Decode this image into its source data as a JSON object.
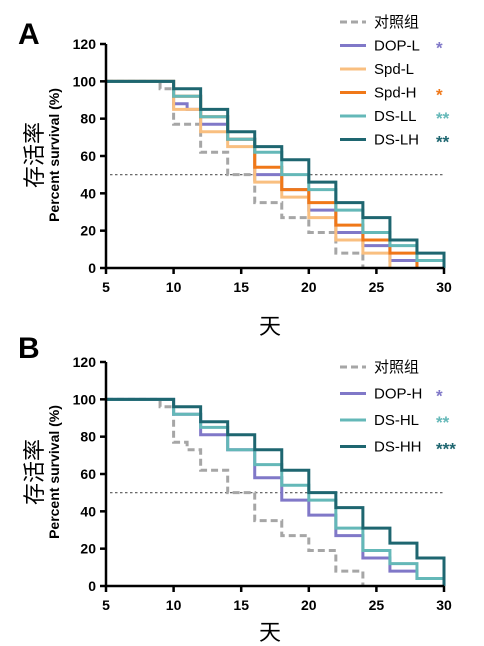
{
  "colors": {
    "control": "#a6a6a6",
    "DOP-L": "#8078c8",
    "Spd-L": "#f9bf80",
    "Spd-H": "#f07818",
    "DS-LL": "#64b8b8",
    "DS-LH": "#1e6670",
    "DOP-H": "#8078c8",
    "DS-HL": "#64b8b8",
    "DS-HH": "#1e6670",
    "reference": "#555555"
  },
  "chart_data": [
    {
      "panel": "A",
      "type": "line",
      "step": true,
      "ylabel_cn": "存活率",
      "ylabel": "Percent survival (%)",
      "xlabel": "天",
      "xlim": [
        5,
        30
      ],
      "ylim": [
        0,
        120
      ],
      "xticks": [
        "5",
        "10",
        "15",
        "20",
        "25",
        "30"
      ],
      "yticks": [
        "0",
        "20",
        "40",
        "60",
        "80",
        "100",
        "120"
      ],
      "reference_y": 50,
      "legend_position": "top-right",
      "series": [
        {
          "name": "对照组",
          "key": "control",
          "style": "dashed",
          "sig": "",
          "x": [
            5,
            9,
            10,
            12,
            14,
            16,
            18,
            20,
            22,
            24
          ],
          "y": [
            100,
            96,
            77,
            62,
            50,
            35,
            27,
            19,
            8,
            0
          ]
        },
        {
          "name": "DOP-L",
          "key": "DOP-L",
          "style": "solid",
          "sig": "*",
          "x": [
            5,
            10,
            11,
            12,
            14,
            16,
            18,
            20,
            22,
            24,
            26,
            28
          ],
          "y": [
            100,
            88,
            85,
            77,
            69,
            50,
            42,
            31,
            19,
            12,
            4,
            0
          ]
        },
        {
          "name": "Spd-L",
          "key": "Spd-L",
          "style": "solid",
          "sig": "",
          "x": [
            5,
            10,
            12,
            14,
            16,
            18,
            20,
            22,
            24,
            26
          ],
          "y": [
            100,
            85,
            73,
            65,
            46,
            38,
            27,
            15,
            8,
            0
          ]
        },
        {
          "name": "Spd-H",
          "key": "Spd-H",
          "style": "solid",
          "sig": "*",
          "x": [
            5,
            10,
            12,
            14,
            16,
            18,
            20,
            22,
            24,
            26,
            28
          ],
          "y": [
            100,
            92,
            81,
            69,
            54,
            42,
            35,
            23,
            15,
            8,
            0
          ]
        },
        {
          "name": "DS-LL",
          "key": "DS-LL",
          "style": "solid",
          "sig": "**",
          "x": [
            5,
            10,
            12,
            14,
            16,
            18,
            20,
            22,
            24,
            26,
            28,
            30
          ],
          "y": [
            100,
            92,
            81,
            69,
            62,
            50,
            42,
            31,
            19,
            12,
            4,
            0
          ]
        },
        {
          "name": "DS-LH",
          "key": "DS-LH",
          "style": "solid",
          "sig": "**",
          "x": [
            5,
            10,
            12,
            14,
            16,
            18,
            20,
            22,
            24,
            26,
            28,
            30
          ],
          "y": [
            100,
            96,
            85,
            73,
            65,
            58,
            46,
            35,
            27,
            15,
            8,
            0
          ]
        }
      ]
    },
    {
      "panel": "B",
      "type": "line",
      "step": true,
      "ylabel_cn": "存活率",
      "ylabel": "Percent survival (%)",
      "xlabel": "天",
      "xlim": [
        5,
        30
      ],
      "ylim": [
        0,
        120
      ],
      "xticks": [
        "5",
        "10",
        "15",
        "20",
        "25",
        "30"
      ],
      "yticks": [
        "0",
        "20",
        "40",
        "60",
        "80",
        "100",
        "120"
      ],
      "reference_y": 50,
      "legend_position": "top-right",
      "series": [
        {
          "name": "对照组",
          "key": "control",
          "style": "dashed",
          "sig": "",
          "x": [
            5,
            9,
            10,
            11,
            12,
            14,
            16,
            18,
            20,
            22,
            24
          ],
          "y": [
            100,
            96,
            77,
            73,
            62,
            50,
            35,
            27,
            19,
            8,
            0
          ]
        },
        {
          "name": "DOP-H",
          "key": "DOP-H",
          "style": "solid",
          "sig": "*",
          "x": [
            5,
            10,
            12,
            14,
            16,
            18,
            20,
            22,
            24,
            26,
            28,
            30
          ],
          "y": [
            100,
            92,
            81,
            73,
            58,
            46,
            38,
            27,
            15,
            8,
            4,
            0
          ]
        },
        {
          "name": "DS-HL",
          "key": "DS-HL",
          "style": "solid",
          "sig": "**",
          "x": [
            5,
            10,
            12,
            14,
            16,
            18,
            20,
            22,
            24,
            26,
            28,
            30
          ],
          "y": [
            100,
            92,
            85,
            73,
            65,
            54,
            46,
            31,
            19,
            12,
            4,
            0
          ]
        },
        {
          "name": "DS-HH",
          "key": "DS-HH",
          "style": "solid",
          "sig": "***",
          "x": [
            5,
            10,
            12,
            14,
            16,
            18,
            20,
            22,
            24,
            26,
            28,
            30
          ],
          "y": [
            100,
            96,
            88,
            81,
            73,
            62,
            50,
            42,
            31,
            23,
            15,
            0
          ]
        }
      ]
    }
  ]
}
